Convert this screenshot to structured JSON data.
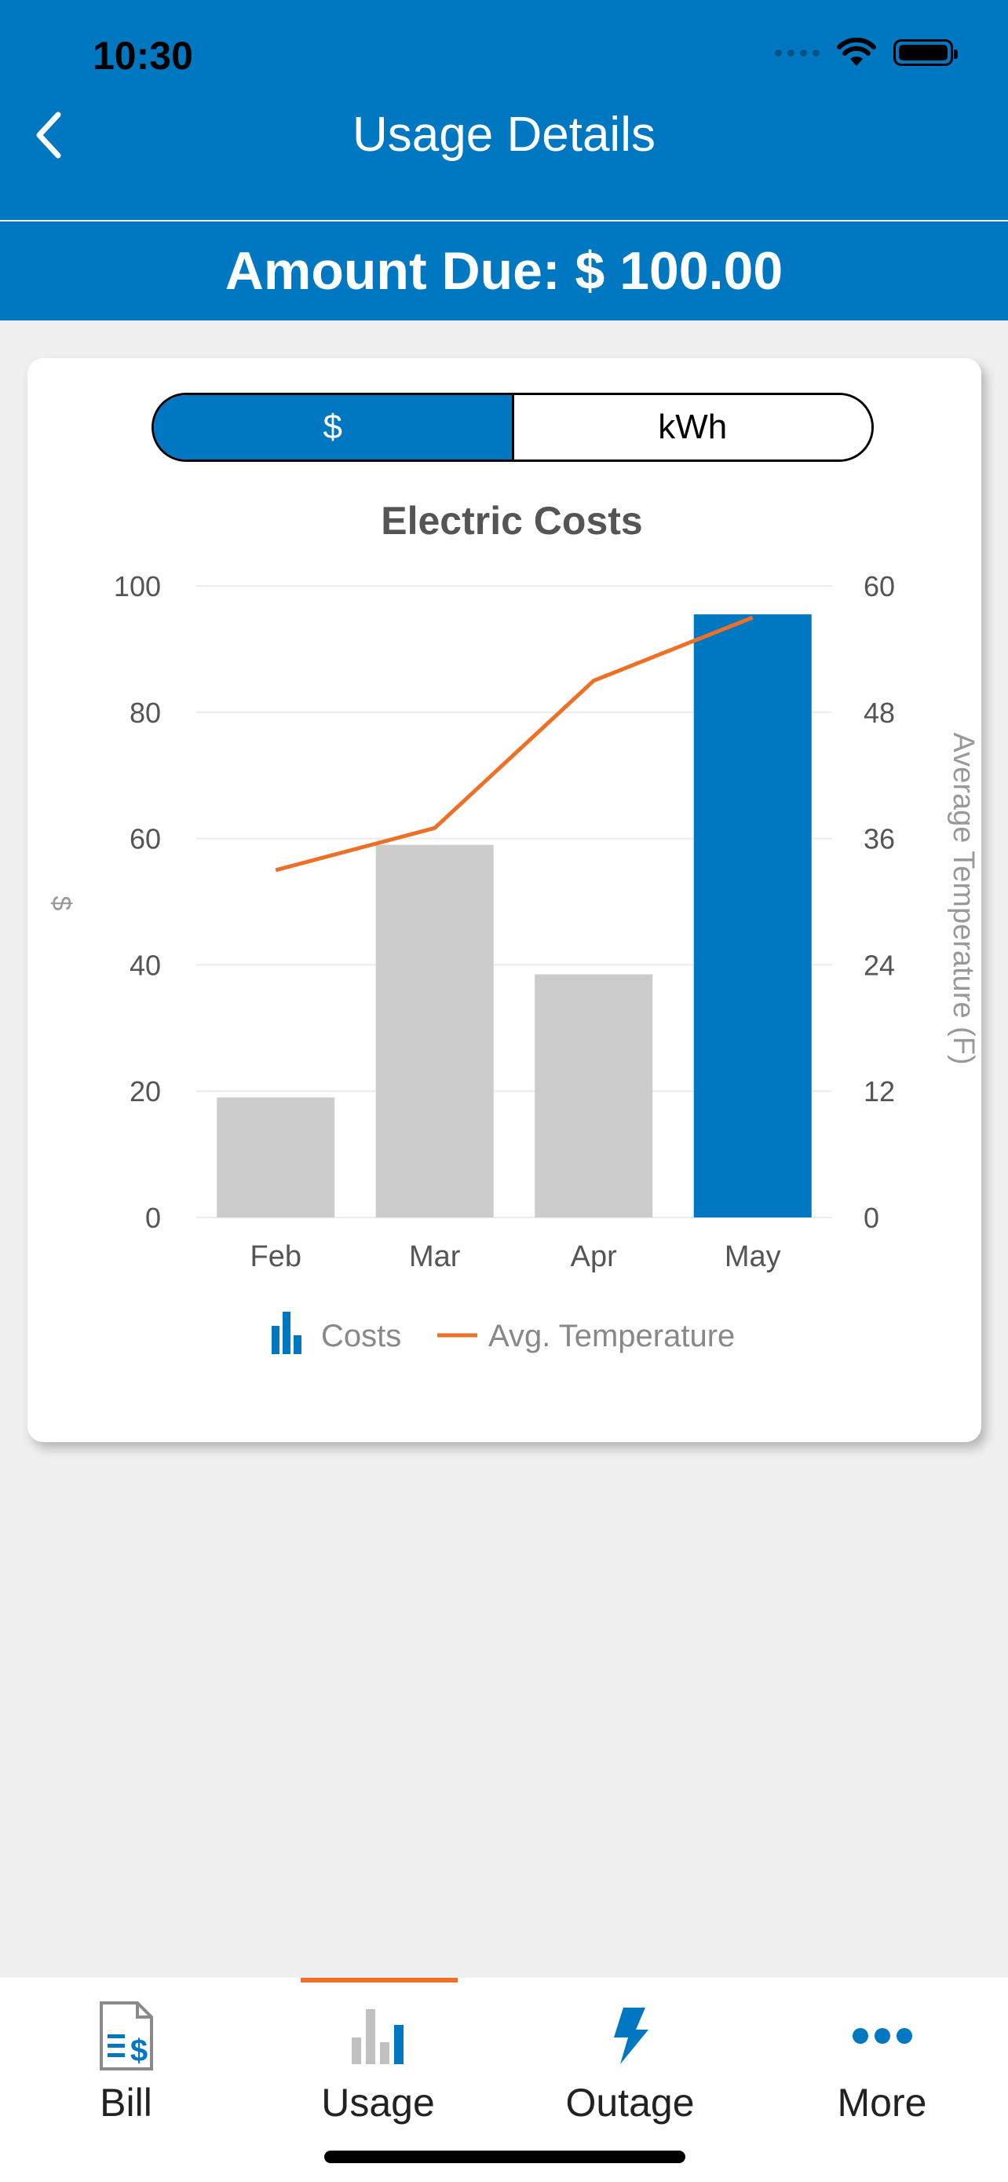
{
  "status": {
    "time": "10:30"
  },
  "header": {
    "title": "Usage Details",
    "amount_due": "Amount Due: $ 100.00"
  },
  "toggle": {
    "options": [
      "$",
      "kWh"
    ],
    "selected": "$"
  },
  "chart_data": {
    "type": "bar",
    "title": "Electric Costs",
    "categories": [
      "Feb",
      "Mar",
      "Apr",
      "May"
    ],
    "series": [
      {
        "name": "Costs",
        "values": [
          19,
          59,
          38.5,
          95.5
        ],
        "colors": [
          "#cccccc",
          "#cccccc",
          "#cccccc",
          "#0077c1"
        ]
      },
      {
        "name": "Avg. Temperature",
        "type": "line",
        "values": [
          33,
          37,
          51,
          57
        ],
        "color": "#ee7027"
      }
    ],
    "ylabel": "$",
    "y2label": "Average Temperature (F)",
    "ylim": [
      0,
      100
    ],
    "y2lim": [
      0,
      60
    ],
    "yticks": [
      0,
      20,
      40,
      60,
      80,
      100
    ],
    "y2ticks": [
      0,
      12,
      24,
      36,
      48,
      60
    ],
    "legend": [
      "Costs",
      "Avg. Temperature"
    ],
    "legend_placement": "bottom-center",
    "grid": true
  },
  "tabbar": {
    "items": [
      {
        "label": "Bill",
        "icon": "bill-icon"
      },
      {
        "label": "Usage",
        "icon": "usage-icon",
        "active": true
      },
      {
        "label": "Outage",
        "icon": "outage-icon"
      },
      {
        "label": "More",
        "icon": "more-icon"
      }
    ]
  },
  "colors": {
    "primary": "#0077c1",
    "accent": "#ee7027",
    "inactive_bar": "#cccccc"
  }
}
